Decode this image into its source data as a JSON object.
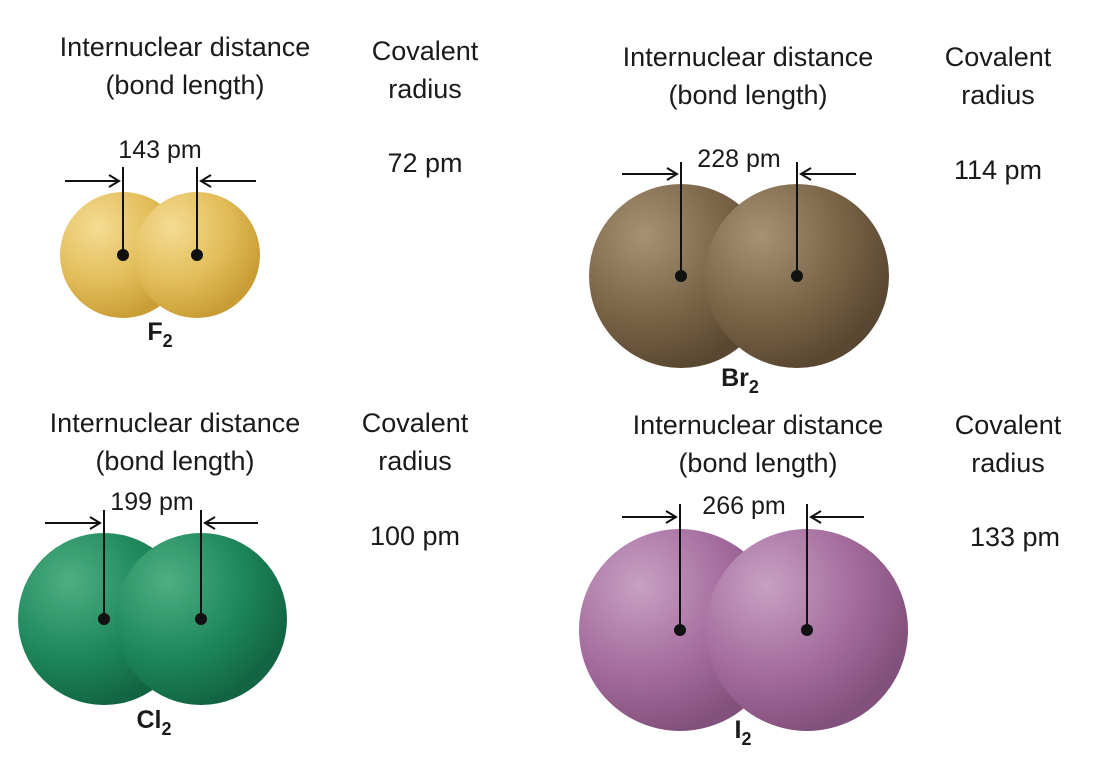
{
  "panels": [
    {
      "id": "f2",
      "distance_label_line1": "Internuclear distance",
      "distance_label_line2": "(bond length)",
      "radius_label_line1": "Covalent",
      "radius_label_line2": "radius",
      "bond_length": "143 pm",
      "covalent_radius": "72 pm",
      "formula_symbol": "F",
      "formula_subscript": "2",
      "color": "#e3bf5c"
    },
    {
      "id": "br2",
      "distance_label_line1": "Internuclear distance",
      "distance_label_line2": "(bond length)",
      "radius_label_line1": "Covalent",
      "radius_label_line2": "radius",
      "bond_length": "228 pm",
      "covalent_radius": "114 pm",
      "formula_symbol": "Br",
      "formula_subscript": "2",
      "color": "#7b6648"
    },
    {
      "id": "cl2",
      "distance_label_line1": "Internuclear distance",
      "distance_label_line2": "(bond length)",
      "radius_label_line1": "Covalent",
      "radius_label_line2": "radius",
      "bond_length": "199 pm",
      "covalent_radius": "100 pm",
      "formula_symbol": "Cl",
      "formula_subscript": "2",
      "color": "#1f8a5e"
    },
    {
      "id": "i2",
      "distance_label_line1": "Internuclear distance",
      "distance_label_line2": "(bond length)",
      "radius_label_line1": "Covalent",
      "radius_label_line2": "radius",
      "bond_length": "266 pm",
      "covalent_radius": "133 pm",
      "formula_symbol": "I",
      "formula_subscript": "2",
      "color": "#a56c9e"
    }
  ]
}
